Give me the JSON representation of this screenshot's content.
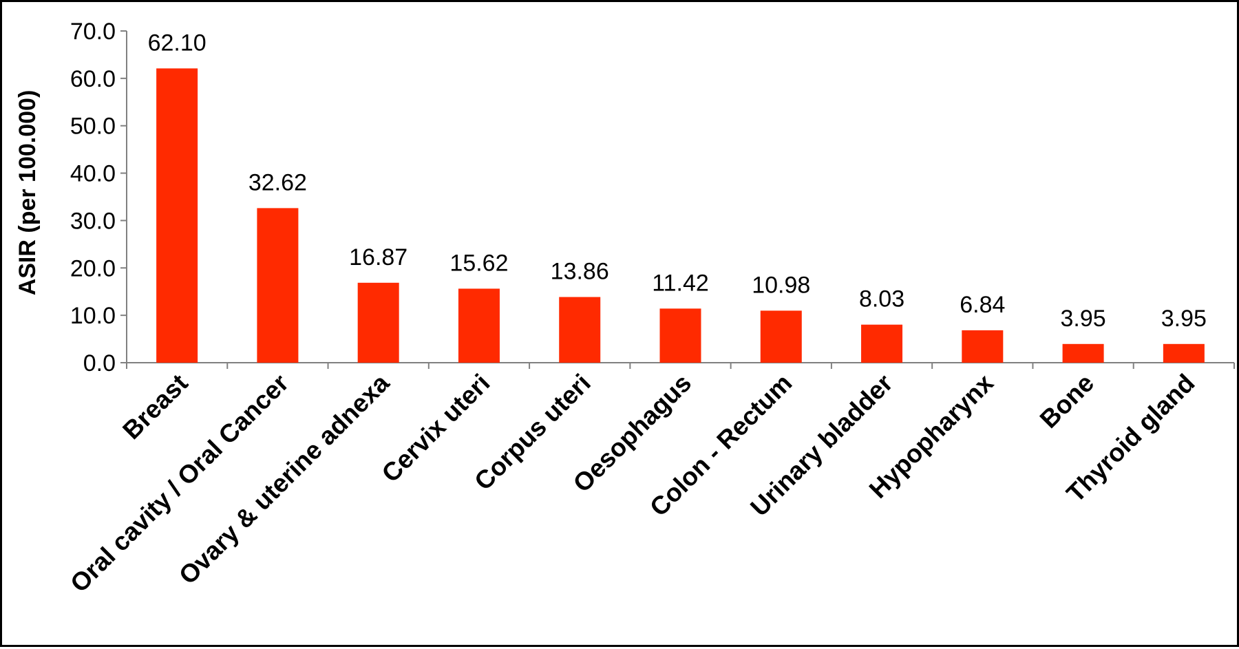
{
  "chart_data": {
    "type": "bar",
    "title": "",
    "xlabel": "",
    "ylabel": "ASIR (per 100.000)",
    "ylim": [
      0,
      70
    ],
    "y_ticks": [
      "0.0",
      "10.0",
      "20.0",
      "30.0",
      "40.0",
      "50.0",
      "60.0",
      "70.0"
    ],
    "grid": false,
    "legend": "none",
    "bar_color": "#ff2a00",
    "categories": [
      "Breast",
      "Oral cavity / Oral Cancer",
      "Ovary & uterine adnexa",
      "Cervix uteri",
      "Corpus uteri",
      "Oesophagus",
      "Colon - Rectum",
      "Urinary bladder",
      "Hypopharynx",
      "Bone",
      "Thyroid gland"
    ],
    "values": [
      62.1,
      32.62,
      16.87,
      15.62,
      13.86,
      11.42,
      10.98,
      8.03,
      6.84,
      3.95,
      3.95
    ],
    "value_labels": [
      "62.10",
      "32.62",
      "16.87",
      "15.62",
      "13.86",
      "11.42",
      "10.98",
      "8.03",
      "6.84",
      "3.95",
      "3.95"
    ]
  }
}
